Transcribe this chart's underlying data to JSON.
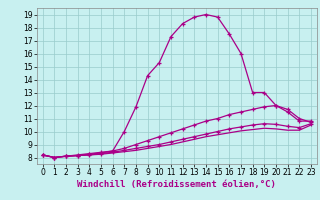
{
  "xlabel": "Windchill (Refroidissement éolien,°C)",
  "bg_color": "#c8f0f0",
  "line_color": "#aa0088",
  "grid_color": "#99cccc",
  "xlim": [
    -0.5,
    23.5
  ],
  "ylim": [
    7.5,
    19.5
  ],
  "xticks": [
    0,
    1,
    2,
    3,
    4,
    5,
    6,
    7,
    8,
    9,
    10,
    11,
    12,
    13,
    14,
    15,
    16,
    17,
    18,
    19,
    20,
    21,
    22,
    23
  ],
  "yticks": [
    8,
    9,
    10,
    11,
    12,
    13,
    14,
    15,
    16,
    17,
    18,
    19
  ],
  "lines": [
    {
      "x": [
        0,
        1,
        2,
        3,
        4,
        5,
        6,
        7,
        8,
        9,
        10,
        11,
        12,
        13,
        14,
        15,
        16,
        17,
        18,
        19,
        20,
        21,
        22,
        23
      ],
      "y": [
        8.2,
        8.0,
        8.1,
        8.2,
        8.3,
        8.4,
        8.5,
        10.0,
        11.9,
        14.3,
        15.3,
        17.3,
        18.3,
        18.8,
        19.0,
        18.8,
        17.5,
        16.0,
        13.0,
        13.0,
        12.0,
        11.5,
        10.8,
        10.8
      ],
      "marker": true
    },
    {
      "x": [
        0,
        1,
        2,
        3,
        4,
        5,
        6,
        7,
        8,
        9,
        10,
        11,
        12,
        13,
        14,
        15,
        16,
        17,
        18,
        19,
        20,
        21,
        22,
        23
      ],
      "y": [
        8.2,
        8.0,
        8.1,
        8.15,
        8.25,
        8.35,
        8.5,
        8.7,
        9.0,
        9.3,
        9.6,
        9.9,
        10.2,
        10.5,
        10.8,
        11.0,
        11.3,
        11.5,
        11.7,
        11.9,
        12.0,
        11.7,
        11.0,
        10.7
      ],
      "marker": true
    },
    {
      "x": [
        0,
        1,
        2,
        3,
        4,
        5,
        6,
        7,
        8,
        9,
        10,
        11,
        12,
        13,
        14,
        15,
        16,
        17,
        18,
        19,
        20,
        21,
        22,
        23
      ],
      "y": [
        8.2,
        8.0,
        8.1,
        8.15,
        8.2,
        8.3,
        8.4,
        8.55,
        8.7,
        8.85,
        9.0,
        9.2,
        9.4,
        9.6,
        9.8,
        10.0,
        10.2,
        10.35,
        10.5,
        10.6,
        10.55,
        10.4,
        10.3,
        10.6
      ],
      "marker": true
    },
    {
      "x": [
        0,
        1,
        2,
        3,
        4,
        5,
        6,
        7,
        8,
        9,
        10,
        11,
        12,
        13,
        14,
        15,
        16,
        17,
        18,
        19,
        20,
        21,
        22,
        23
      ],
      "y": [
        8.2,
        8.0,
        8.1,
        8.15,
        8.2,
        8.25,
        8.35,
        8.45,
        8.55,
        8.7,
        8.85,
        9.0,
        9.2,
        9.4,
        9.6,
        9.75,
        9.9,
        10.05,
        10.15,
        10.25,
        10.2,
        10.1,
        10.1,
        10.5
      ],
      "marker": false
    }
  ],
  "tick_fontsize": 5.5,
  "xlabel_fontsize": 6.5,
  "marker_size": 3,
  "linewidth": 0.9
}
